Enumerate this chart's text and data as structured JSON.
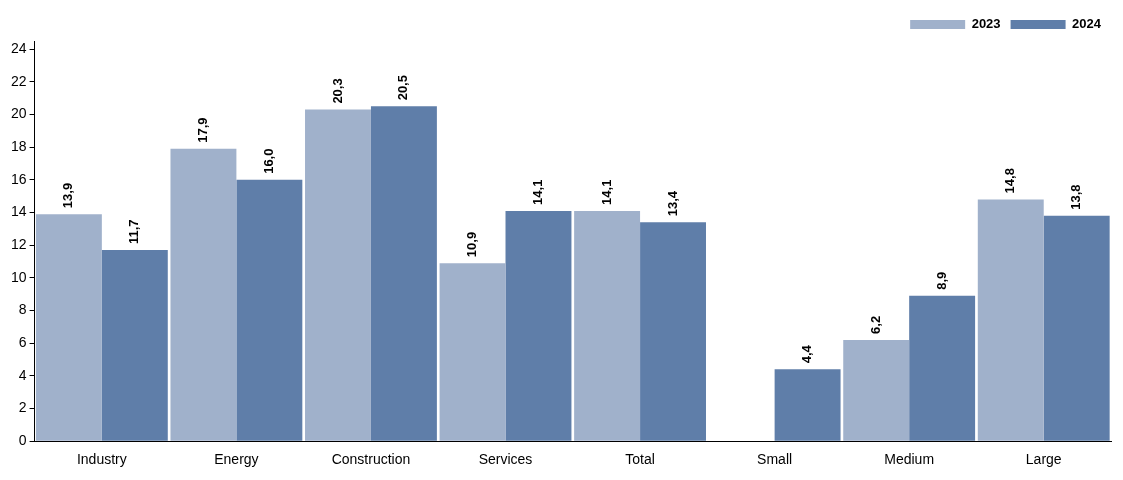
{
  "chart_data": {
    "type": "bar",
    "categories": [
      "Industry",
      "Energy",
      "Construction",
      "Services",
      "Total",
      "Small",
      "Medium",
      "Large"
    ],
    "series": [
      {
        "name": "2023",
        "color": "#a0b1cb",
        "values": [
          13.9,
          17.9,
          20.3,
          10.9,
          14.1,
          null,
          6.2,
          14.8
        ],
        "value_labels": [
          "13,9",
          "17,9",
          "20,3",
          "10,9",
          "14,1",
          null,
          "6,2",
          "14,8"
        ]
      },
      {
        "name": "2024",
        "color": "#5f7ea9",
        "values": [
          11.7,
          16.0,
          20.5,
          14.1,
          13.4,
          4.4,
          8.9,
          13.8
        ],
        "value_labels": [
          "11,7",
          "16,0",
          "20,5",
          "14,1",
          "13,4",
          "4,4",
          "8,9",
          "13,8"
        ]
      }
    ],
    "ylim": [
      0,
      24.5
    ],
    "yticks": [
      0,
      2,
      4,
      6,
      8,
      10,
      12,
      14,
      16,
      18,
      20,
      22,
      24
    ],
    "grid": false,
    "legend": "top right"
  }
}
